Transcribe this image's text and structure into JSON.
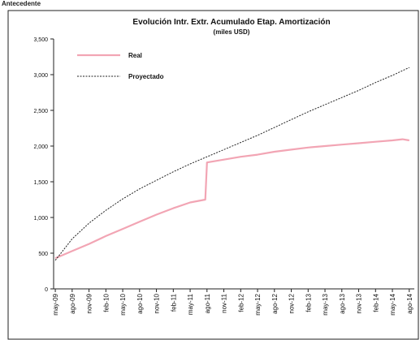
{
  "header_text": "Antecedente",
  "chart_data": {
    "type": "line",
    "title": "Evolución Intr. Extr. Acumulado Etap. Amortización",
    "subtitle": "(miles USD)",
    "xlabel": "",
    "ylabel": "",
    "ylim": [
      0,
      3500
    ],
    "yticks": [
      0,
      500,
      1000,
      1500,
      2000,
      2500,
      3000,
      3500
    ],
    "ytick_labels": [
      "0",
      "500",
      "1,000",
      "1,500",
      "2,000",
      "2,500",
      "3,000",
      "3,500"
    ],
    "categories": [
      "may-09",
      "ago-09",
      "nov-09",
      "feb-10",
      "may-10",
      "ago-10",
      "nov-10",
      "feb-11",
      "may-11",
      "ago-11",
      "nov-11",
      "feb-12",
      "may-12",
      "ago-12",
      "nov-12",
      "feb-13",
      "may-13",
      "ago-13",
      "nov-13",
      "feb-14",
      "may-14",
      "ago-14"
    ],
    "legend_position": "top-left",
    "grid": false,
    "series": [
      {
        "name": "Real",
        "color": "#f2a5b4",
        "style": "solid",
        "points": [
          [
            0,
            430
          ],
          [
            1,
            530
          ],
          [
            2,
            630
          ],
          [
            3,
            740
          ],
          [
            4,
            840
          ],
          [
            5,
            940
          ],
          [
            6,
            1040
          ],
          [
            7,
            1130
          ],
          [
            8,
            1210
          ],
          [
            8.9,
            1250
          ],
          [
            9.0,
            1770
          ],
          [
            10,
            1810
          ],
          [
            11,
            1850
          ],
          [
            12,
            1880
          ],
          [
            13,
            1920
          ],
          [
            14,
            1950
          ],
          [
            15,
            1980
          ],
          [
            16,
            2000
          ],
          [
            17,
            2020
          ],
          [
            18,
            2040
          ],
          [
            19,
            2060
          ],
          [
            20,
            2080
          ],
          [
            20.6,
            2095
          ],
          [
            21,
            2080
          ]
        ]
      },
      {
        "name": "Proyectado",
        "color": "#222222",
        "style": "dashed",
        "points": [
          [
            0,
            400
          ],
          [
            1,
            700
          ],
          [
            2,
            920
          ],
          [
            3,
            1100
          ],
          [
            4,
            1260
          ],
          [
            5,
            1400
          ],
          [
            6,
            1520
          ],
          [
            7,
            1640
          ],
          [
            8,
            1750
          ],
          [
            9,
            1850
          ],
          [
            10,
            1950
          ],
          [
            11,
            2050
          ],
          [
            12,
            2150
          ],
          [
            13,
            2260
          ],
          [
            14,
            2370
          ],
          [
            15,
            2480
          ],
          [
            16,
            2580
          ],
          [
            17,
            2680
          ],
          [
            18,
            2780
          ],
          [
            19,
            2890
          ],
          [
            20,
            2990
          ],
          [
            21,
            3100
          ]
        ]
      }
    ]
  }
}
